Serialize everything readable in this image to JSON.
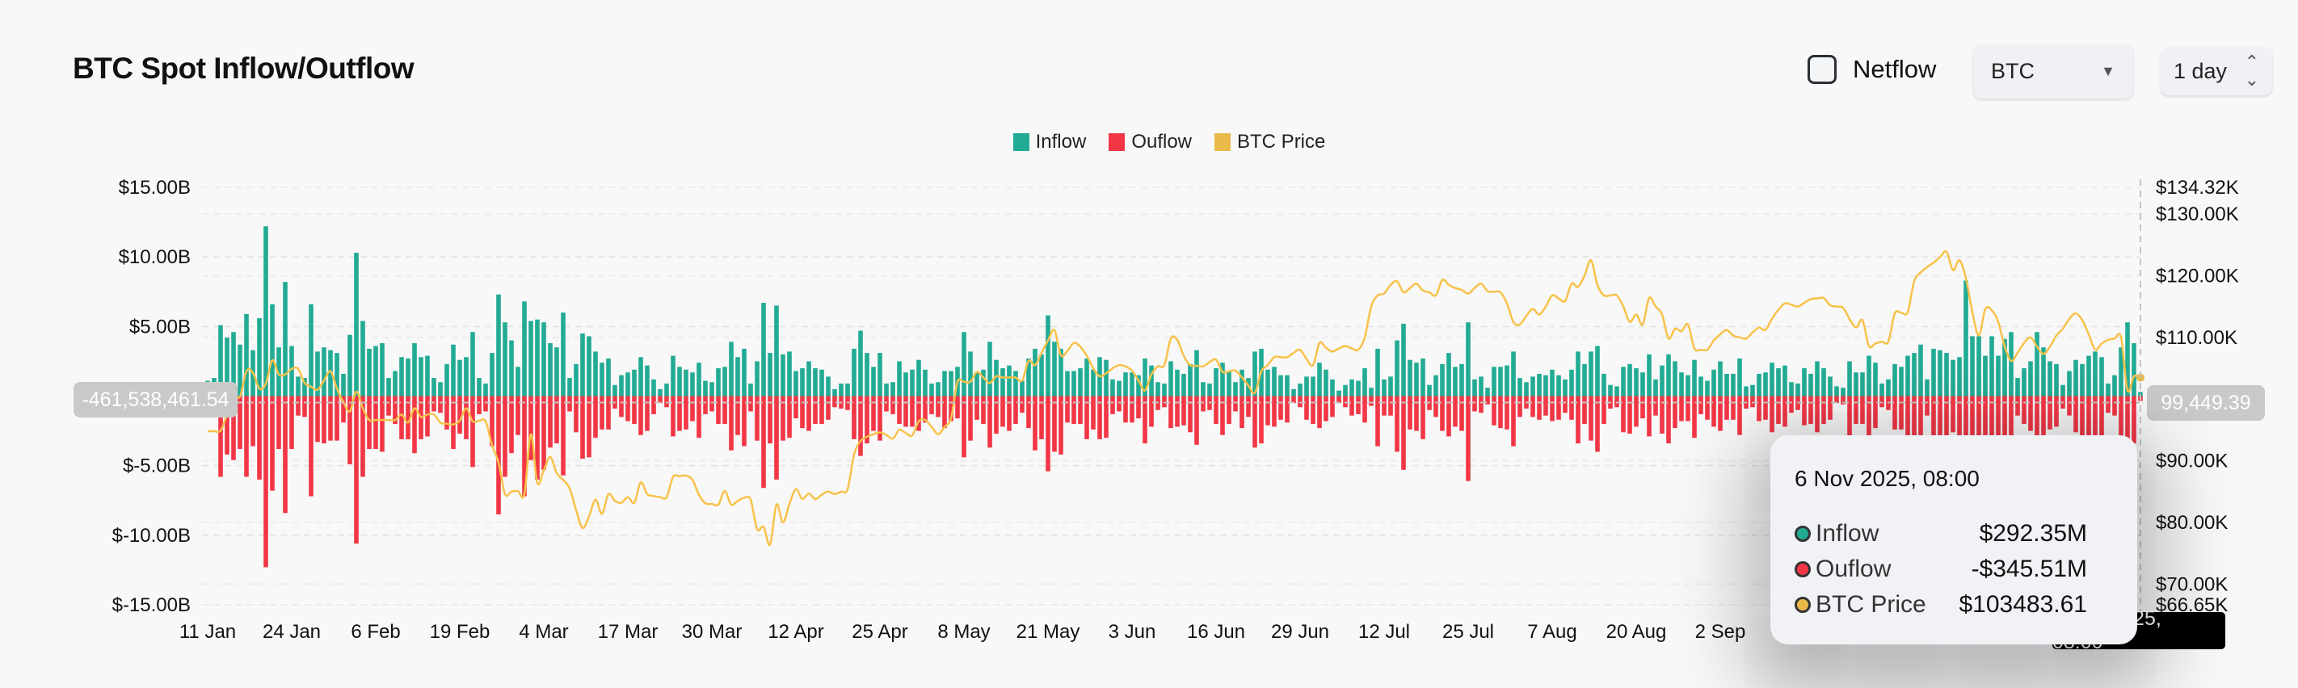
{
  "header": {
    "title": "BTC Spot Inflow/Outflow",
    "netflow_label": "Netflow",
    "netflow_checked": false,
    "asset_select": "BTC",
    "interval_select": "1 day"
  },
  "colors": {
    "inflow": "#22ab94",
    "outflow": "#f23645",
    "price": "#f7c24a",
    "tooltip_bg": "#f1f2f6"
  },
  "crosshair": {
    "left_value": "-461,538,461.54",
    "right_value": "99,449.39",
    "x_value": "6 Nov 2025, 08:00"
  },
  "tooltip": {
    "date": "6 Nov 2025, 08:00",
    "rows": [
      {
        "label": "Inflow",
        "value": "$292.35M",
        "color": "#22ab94"
      },
      {
        "label": "Ouflow",
        "value": "-$345.51M",
        "color": "#f23645"
      },
      {
        "label": "BTC Price",
        "value": "$103483.61",
        "color": "#e9b949"
      }
    ]
  },
  "chart_data": {
    "type": "bar",
    "title": "BTC Spot Inflow/Outflow",
    "interval": "1 day",
    "legend": [
      "Inflow",
      "Ouflow",
      "BTC Price"
    ],
    "legend_position": "top",
    "grid": true,
    "x_tick_labels": [
      "11 Jan",
      "24 Jan",
      "6 Feb",
      "19 Feb",
      "4 Mar",
      "17 Mar",
      "30 Mar",
      "12 Apr",
      "25 Apr",
      "8 May",
      "21 May",
      "3 Jun",
      "16 Jun",
      "29 Jun",
      "12 Jul",
      "25 Jul",
      "7 Aug",
      "20 Aug",
      "2 Sep"
    ],
    "y_left": {
      "ticks": [
        15,
        10,
        5,
        -5,
        -10,
        -15
      ],
      "tick_labels": [
        "$15.00B",
        "$10.00B",
        "$5.00B",
        "$-5.00B",
        "$-10.00B",
        "$-15.00B"
      ],
      "range": [
        -15,
        15
      ],
      "unit": "USD billions"
    },
    "y_right": {
      "ticks": [
        134.32,
        130,
        120,
        110,
        90,
        80,
        70,
        66.65
      ],
      "tick_labels": [
        "$134.32K",
        "$130.00K",
        "$120.00K",
        "$110.00K",
        "$90.00K",
        "$80.00K",
        "$70.00K",
        "$66.65K"
      ],
      "range": [
        66.65,
        134.32
      ],
      "unit": "USD thousands"
    },
    "series": [
      {
        "name": "Inflow",
        "type": "bar",
        "values": [
          1.1,
          1.3,
          5.1,
          4.2,
          4.6,
          3.7,
          5.9,
          3.3,
          5.6,
          12.2,
          6.6,
          3.5,
          8.2,
          3.6,
          1.4,
          1.3,
          6.6,
          3.2,
          3.5,
          3.3,
          3.1,
          1.6,
          4.4,
          10.3,
          5.4,
          3.4,
          3.6,
          3.8,
          1.3,
          1.8,
          2.8,
          2.7,
          3.8,
          2.8,
          2.9,
          1.3,
          1.0,
          2.3,
          3.7,
          2.6,
          2.8,
          4.6,
          1.3,
          0.9,
          3.1,
          7.3,
          5.3,
          4.0,
          2.1,
          6.8,
          5.4,
          5.5,
          5.3,
          3.8,
          3.5,
          6.0,
          1.3,
          2.3,
          4.5,
          4.3,
          3.2,
          2.4,
          2.7,
          0.8,
          1.5,
          1.7,
          1.9,
          2.8,
          2.2,
          1.2,
          0.5,
          0.9,
          2.9,
          2.1,
          1.9,
          1.7,
          2.4,
          1.1,
          1.0,
          2.0,
          2.1,
          3.9,
          2.8,
          3.4,
          0.9,
          2.5,
          6.7,
          3.1,
          6.5,
          3.0,
          3.2,
          1.8,
          2.0,
          2.5,
          2.0,
          1.9,
          1.4,
          0.5,
          0.9,
          0.9,
          3.4,
          4.7,
          3.1,
          2.1,
          3.1,
          0.9,
          1.0,
          2.5,
          1.7,
          1.9,
          2.6,
          1.9,
          0.9,
          1.0,
          1.8,
          1.8,
          2.1,
          4.6,
          3.2,
          1.7,
          1.9,
          3.9,
          2.6,
          2.0,
          2.2,
          1.8,
          1.1,
          2.7,
          3.4,
          3.0,
          5.8,
          3.9,
          3.4,
          1.8,
          1.8,
          2.0,
          2.7,
          1.9,
          2.8,
          2.6,
          1.2,
          1.1,
          1.7,
          1.7,
          1.5,
          2.7,
          2.2,
          1.0,
          0.9,
          2.5,
          1.9,
          1.6,
          2.3,
          3.3,
          1.0,
          0.9,
          2.0,
          2.4,
          1.8,
          1.0,
          1.9,
          1.3,
          3.2,
          3.4,
          1.9,
          2.1,
          1.5,
          1.5,
          0.5,
          0.9,
          1.4,
          1.4,
          2.4,
          1.9,
          1.2,
          0.4,
          0.8,
          1.2,
          1.1,
          2.0,
          0.6,
          3.4,
          1.2,
          1.4,
          4.0,
          5.2,
          2.6,
          2.4,
          2.7,
          0.8,
          1.5,
          2.3,
          3.1,
          2.1,
          2.3,
          5.3,
          1.2,
          1.4,
          0.6,
          2.1,
          2.1,
          2.2,
          3.2,
          1.3,
          1.0,
          1.4,
          1.6,
          1.5,
          1.9,
          1.5,
          1.2,
          1.9,
          3.2,
          2.3,
          3.2,
          3.6,
          1.6,
          0.8,
          0.7,
          2.1,
          2.3,
          2.0,
          1.7,
          3.0,
          1.2,
          2.2,
          3.0,
          2.5,
          1.7,
          1.5,
          2.6,
          1.4,
          1.1,
          1.9,
          2.5,
          1.6,
          1.6,
          2.7,
          0.7,
          0.8,
          1.6,
          1.7,
          2.4,
          2.0,
          2.2,
          1.0,
          0.9,
          2.0,
          1.6,
          2.5,
          2.0,
          1.4,
          0.7,
          0.6,
          2.5,
          1.7,
          1.7,
          2.9,
          2.4,
          0.9,
          1.2,
          2.3,
          2.1,
          2.9,
          3.1,
          3.7,
          1.2,
          3.4,
          3.3,
          3.1,
          2.6,
          2.8,
          8.3,
          4.3,
          4.3,
          2.9,
          4.3,
          2.9,
          4.1,
          4.6,
          1.3,
          2.0,
          2.5,
          4.6,
          3.5,
          2.5,
          2.3,
          0.8,
          1.8,
          2.6,
          2.3,
          2.9,
          3.2,
          2.8,
          0.9,
          1.5,
          3.5,
          5.3,
          3.8,
          0.29
        ]
      },
      {
        "name": "Ouflow",
        "type": "bar",
        "values": [
          -1.0,
          -1.2,
          -5.8,
          -4.2,
          -4.6,
          -3.8,
          -5.8,
          -3.6,
          -6.0,
          -12.3,
          -6.8,
          -3.8,
          -8.4,
          -3.8,
          -1.4,
          -1.5,
          -7.2,
          -3.3,
          -3.4,
          -3.2,
          -3.2,
          -1.9,
          -4.9,
          -10.6,
          -5.8,
          -3.8,
          -3.8,
          -4.0,
          -1.4,
          -2.0,
          -3.1,
          -3.1,
          -4.1,
          -3.1,
          -2.9,
          -1.1,
          -1.2,
          -2.4,
          -3.8,
          -2.7,
          -3.1,
          -5.1,
          -1.3,
          -1.1,
          -3.6,
          -8.5,
          -5.8,
          -4.1,
          -2.8,
          -7.2,
          -4.6,
          -6.0,
          -5.3,
          -3.7,
          -3.4,
          -5.7,
          -1.1,
          -2.6,
          -4.5,
          -4.4,
          -3.0,
          -2.4,
          -2.4,
          -0.9,
          -1.5,
          -1.8,
          -2.0,
          -2.8,
          -2.5,
          -1.3,
          -0.5,
          -0.8,
          -2.9,
          -2.5,
          -2.4,
          -1.8,
          -3.0,
          -1.3,
          -1.1,
          -2.0,
          -2.0,
          -3.9,
          -2.8,
          -3.6,
          -1.1,
          -3.2,
          -6.6,
          -3.4,
          -6.0,
          -3.2,
          -3.0,
          -1.6,
          -2.3,
          -2.5,
          -2.0,
          -2.0,
          -1.7,
          -0.8,
          -0.9,
          -1.0,
          -3.1,
          -4.3,
          -3.4,
          -2.5,
          -3.2,
          -1.1,
          -1.3,
          -2.0,
          -2.2,
          -2.2,
          -2.5,
          -1.9,
          -1.3,
          -1.5,
          -2.3,
          -1.8,
          -1.6,
          -4.4,
          -3.2,
          -1.7,
          -2.0,
          -3.7,
          -2.7,
          -2.2,
          -2.5,
          -2.0,
          -1.2,
          -2.3,
          -3.9,
          -3.1,
          -5.4,
          -4.0,
          -4.2,
          -1.9,
          -2.0,
          -2.0,
          -3.1,
          -2.4,
          -3.1,
          -3.0,
          -1.3,
          -1.1,
          -1.9,
          -1.9,
          -1.6,
          -3.4,
          -2.2,
          -1.0,
          -0.8,
          -2.3,
          -2.2,
          -2.1,
          -2.6,
          -3.5,
          -1.1,
          -1.0,
          -2.0,
          -2.8,
          -2.0,
          -1.1,
          -2.3,
          -1.5,
          -3.7,
          -3.4,
          -2.1,
          -2.2,
          -1.7,
          -1.9,
          -0.5,
          -0.8,
          -1.7,
          -2.0,
          -2.3,
          -1.8,
          -1.5,
          -0.5,
          -0.8,
          -1.4,
          -1.3,
          -1.9,
          -0.7,
          -3.6,
          -1.4,
          -1.4,
          -4.0,
          -5.3,
          -2.4,
          -2.5,
          -3.1,
          -1.0,
          -1.5,
          -2.5,
          -2.9,
          -2.2,
          -2.5,
          -6.1,
          -1.1,
          -1.2,
          -0.6,
          -2.1,
          -2.3,
          -2.4,
          -3.6,
          -1.5,
          -0.9,
          -1.5,
          -1.7,
          -1.4,
          -1.8,
          -1.7,
          -1.2,
          -1.7,
          -3.4,
          -2.0,
          -3.2,
          -4.0,
          -2.0,
          -0.9,
          -0.8,
          -2.6,
          -2.7,
          -2.2,
          -1.6,
          -2.9,
          -1.4,
          -2.7,
          -3.4,
          -2.3,
          -1.8,
          -1.8,
          -3.0,
          -1.3,
          -1.7,
          -2.2,
          -2.5,
          -1.7,
          -1.7,
          -2.8,
          -0.9,
          -0.8,
          -1.8,
          -1.7,
          -2.6,
          -2.0,
          -2.2,
          -1.2,
          -1.0,
          -2.1,
          -2.0,
          -2.6,
          -2.0,
          -1.7,
          -0.5,
          -0.6,
          -3.0,
          -2.0,
          -2.0,
          -3.2,
          -2.3,
          -0.8,
          -1.0,
          -2.4,
          -2.4,
          -3.3,
          -3.5,
          -3.8,
          -1.4,
          -3.4,
          -3.3,
          -3.1,
          -2.6,
          -3.0,
          -8.5,
          -4.5,
          -4.5,
          -3.0,
          -4.4,
          -3.0,
          -4.0,
          -4.6,
          -1.4,
          -2.0,
          -2.5,
          -4.6,
          -3.5,
          -2.4,
          -2.2,
          -0.9,
          -1.4,
          -2.6,
          -3.0,
          -3.0,
          -3.3,
          -3.0,
          -1.2,
          -1.4,
          -3.7,
          -5.8,
          -3.4,
          -0.35
        ]
      },
      {
        "name": "BTC Price",
        "type": "line",
        "axis": "right",
        "values": [
          94.8,
          94.8,
          94.9,
          97.5,
          100.6,
          100.4,
          104.5,
          104.3,
          101.7,
          102.5,
          106.3,
          104.0,
          104.0,
          104.9,
          104.9,
          102.6,
          102.0,
          101.5,
          103.0,
          104.5,
          101.7,
          99.5,
          98.0,
          101.2,
          98.5,
          96.6,
          96.6,
          96.6,
          96.6,
          96.6,
          97.5,
          96.2,
          98.5,
          97.1,
          97.5,
          97.5,
          96.2,
          96.0,
          95.9,
          96.5,
          98.5,
          96.4,
          96.5,
          96.4,
          92.5,
          89.7,
          84.6,
          85.0,
          85.1,
          84.6,
          94.3,
          86.4,
          88.5,
          90.6,
          88.0,
          86.9,
          85.5,
          82.0,
          79.1,
          81.0,
          83.7,
          81.4,
          84.6,
          83.5,
          83.2,
          84.1,
          83.2,
          86.5,
          84.6,
          84.3,
          84.1,
          84.1,
          87.4,
          87.5,
          87.6,
          86.9,
          84.5,
          83.1,
          83.0,
          82.9,
          85.1,
          82.9,
          83.5,
          84.0,
          83.7,
          78.9,
          79.3,
          76.4,
          82.9,
          80.0,
          83.0,
          85.4,
          83.8,
          84.7,
          83.8,
          84.5,
          85.0,
          84.6,
          85.0,
          85.4,
          91.0,
          93.2,
          93.9,
          94.3,
          94.6,
          94.2,
          93.6,
          95.0,
          94.5,
          94.1,
          96.4,
          96.6,
          95.5,
          94.3,
          95.5,
          96.9,
          102.8,
          102.8,
          102.8,
          104.4,
          103.5,
          102.6,
          103.7,
          103.5,
          103.5,
          103.5,
          103.0,
          106.2,
          105.5,
          107.5,
          109.5,
          111.2,
          107.1,
          107.8,
          109.1,
          108.5,
          107.0,
          105.0,
          103.7,
          104.2,
          105.0,
          105.5,
          105.3,
          104.6,
          103.0,
          101.4,
          104.0,
          105.3,
          105.5,
          109.8,
          109.6,
          107.0,
          105.5,
          105.4,
          105.3,
          106.0,
          106.4,
          104.4,
          104.5,
          104.6,
          103.5,
          102.2,
          101.0,
          104.5,
          105.5,
          106.8,
          106.8,
          106.8,
          107.5,
          108.0,
          106.5,
          105.5,
          109.1,
          108.3,
          107.7,
          108.2,
          108.6,
          108.2,
          108.0,
          110.0,
          115.0,
          116.8,
          117.1,
          118.5,
          119.1,
          117.3,
          118.0,
          118.7,
          117.6,
          117.3,
          116.8,
          119.3,
          118.5,
          118.0,
          117.7,
          117.1,
          118.0,
          118.7,
          117.5,
          117.4,
          117.3,
          115.5,
          112.5,
          112.1,
          113.5,
          114.6,
          113.7,
          115.0,
          116.8,
          116.3,
          115.9,
          118.7,
          118.2,
          120.0,
          122.5,
          118.5,
          116.8,
          116.8,
          116.8,
          115.0,
          112.5,
          113.7,
          112.1,
          116.4,
          115.0,
          113.7,
          109.8,
          111.4,
          111.0,
          112.1,
          108.2,
          108.0,
          108.0,
          109.5,
          110.5,
          111.2,
          110.3,
          110.0,
          109.8,
          110.8,
          111.6,
          111.2,
          113.0,
          114.5,
          115.5,
          115.3,
          115.0,
          115.6,
          116.2,
          116.3,
          116.4,
          115.2,
          115.0,
          114.8,
          113.0,
          111.6,
          112.8,
          108.6,
          109.0,
          109.3,
          109.3,
          113.9,
          114.0,
          114.1,
          119.1,
          120.5,
          121.4,
          122.1,
          123.0,
          123.9,
          120.9,
          122.5,
          119.6,
          114.1,
          110.3,
          114.6,
          114.4,
          112.5,
          108.5,
          106.2,
          107.5,
          109.1,
          110.0,
          108.5,
          107.3,
          108.5,
          110.3,
          111.4,
          113.0,
          113.9,
          112.8,
          110.5,
          108.0,
          109.0,
          109.6,
          109.8,
          110.0,
          101.4,
          103.7,
          103.48
        ]
      }
    ]
  }
}
